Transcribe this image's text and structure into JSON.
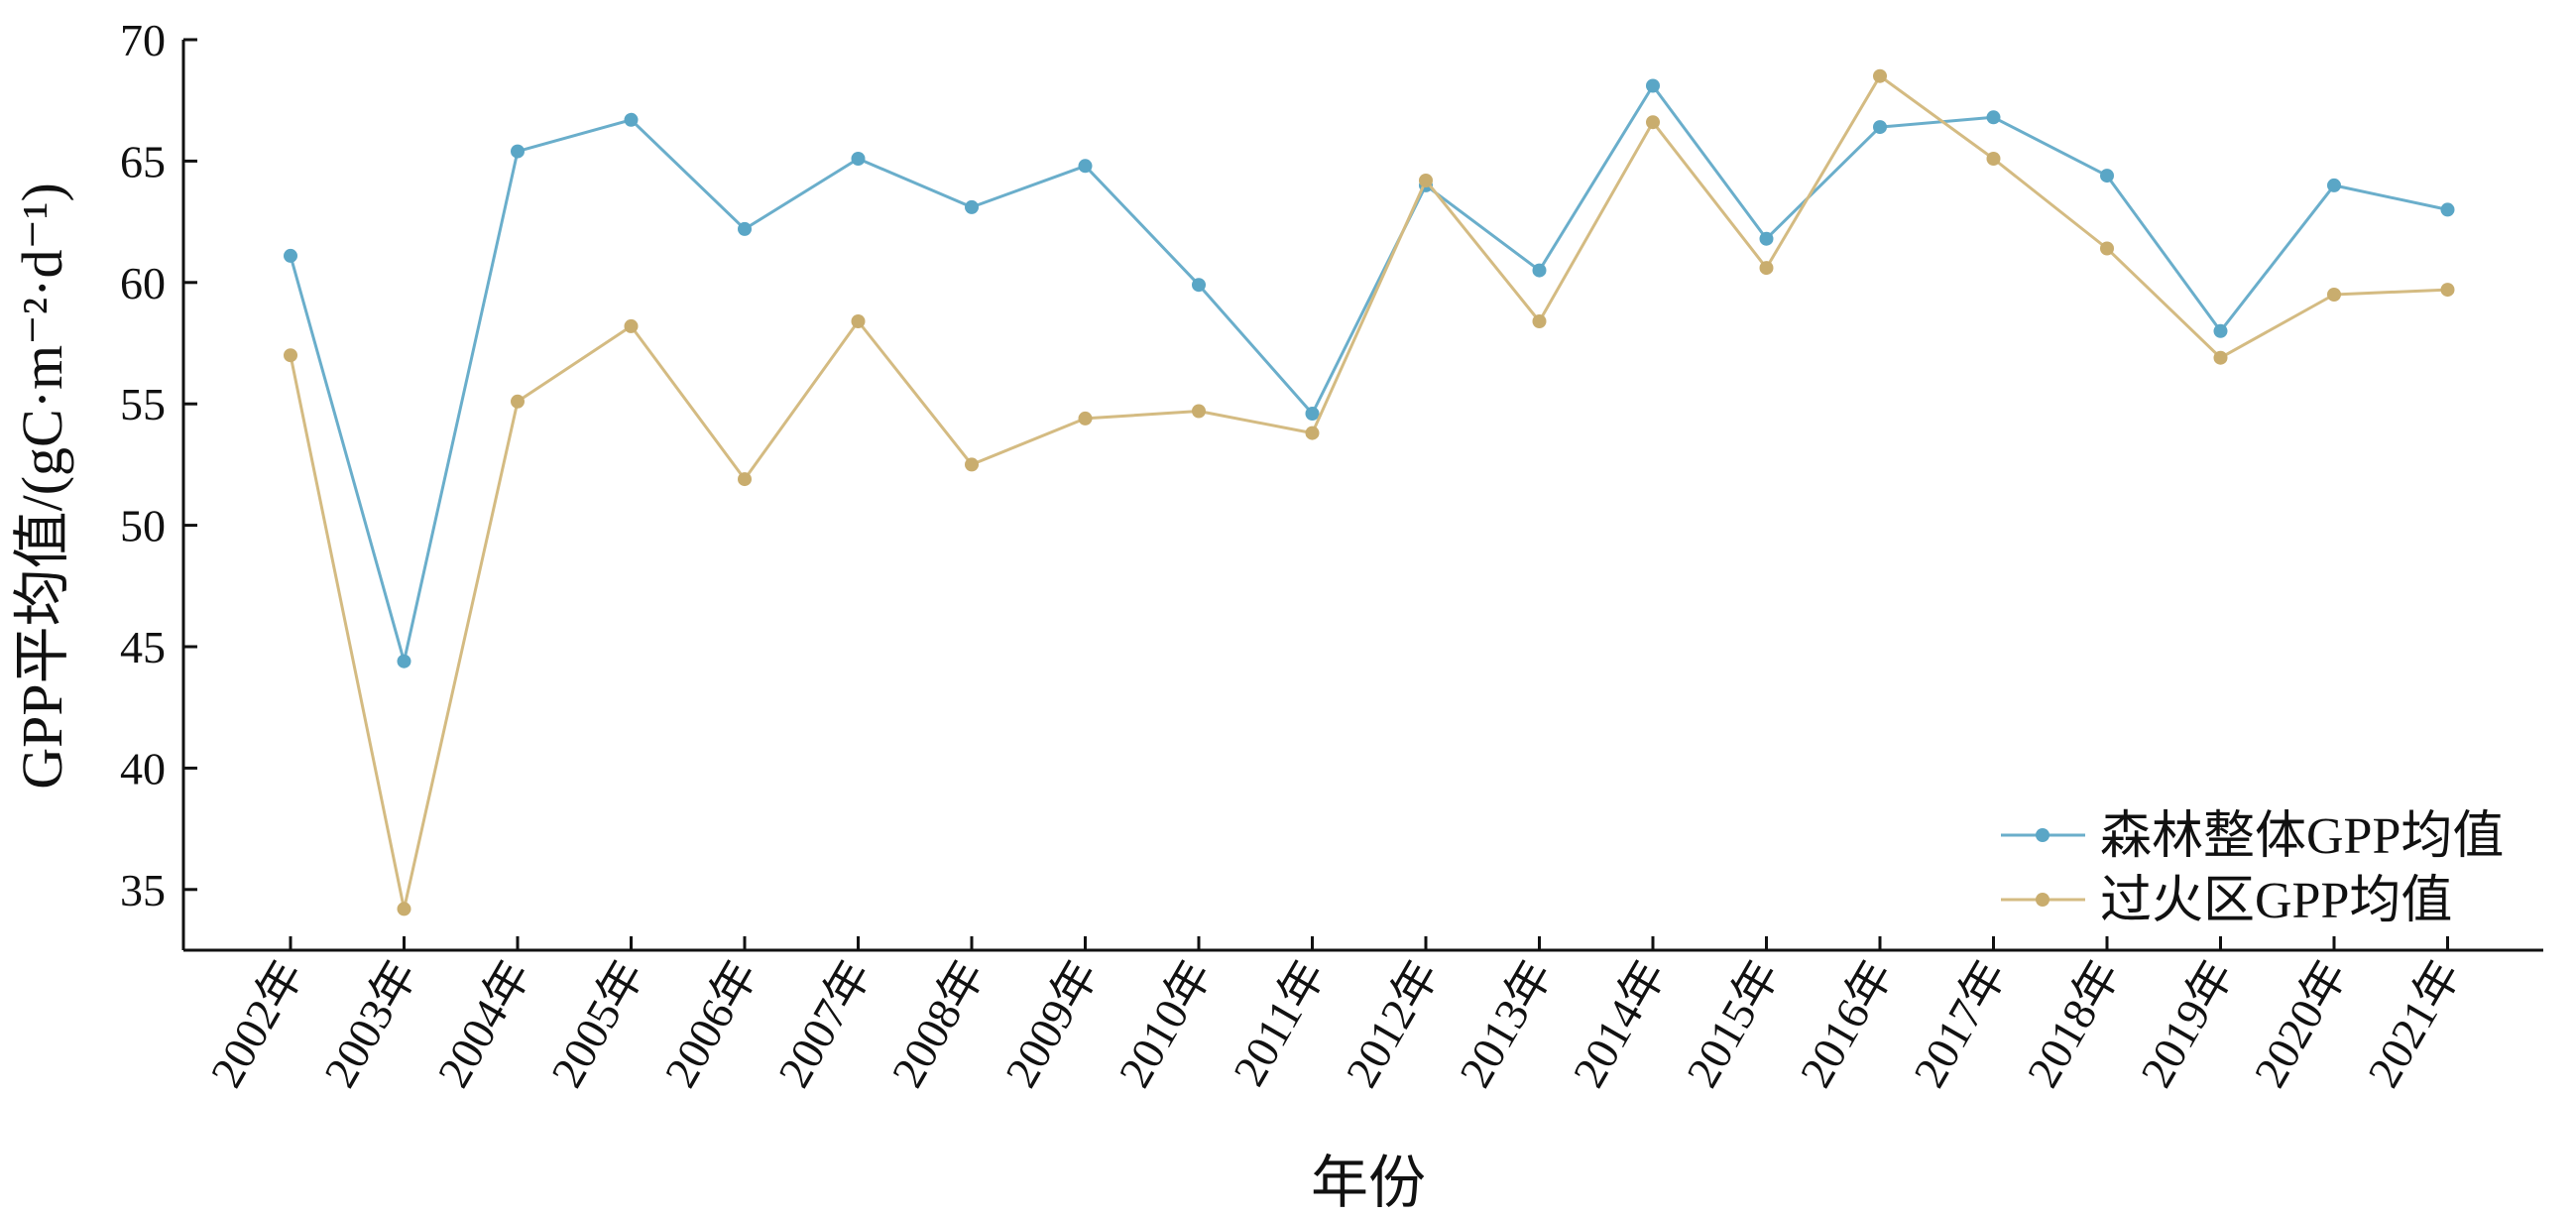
{
  "chart_data": {
    "type": "line",
    "xlabel": "年份",
    "ylabel": "GPP平均值/(gC·m⁻²·d⁻¹)",
    "ylim": [
      32.5,
      70
    ],
    "yticks": [
      35,
      40,
      45,
      50,
      55,
      60,
      65,
      70
    ],
    "grid": false,
    "legend_position": "bottom-right",
    "categories": [
      "2002年",
      "2003年",
      "2004年",
      "2005年",
      "2006年",
      "2007年",
      "2008年",
      "2009年",
      "2010年",
      "2011年",
      "2012年",
      "2013年",
      "2014年",
      "2015年",
      "2016年",
      "2017年",
      "2018年",
      "2019年",
      "2020年",
      "2021年"
    ],
    "series": [
      {
        "name": "森林整体GPP均值",
        "color": "#6aaecb",
        "values": [
          61.1,
          44.4,
          65.4,
          66.7,
          62.2,
          65.1,
          63.1,
          64.8,
          59.9,
          54.6,
          64.0,
          60.5,
          68.1,
          61.8,
          66.4,
          66.8,
          64.4,
          58.0,
          64.0,
          63.0
        ]
      },
      {
        "name": "过火区GPP均值",
        "color": "#d4bb82",
        "values": [
          57.0,
          34.2,
          55.1,
          58.2,
          51.9,
          58.4,
          52.5,
          54.4,
          54.7,
          53.8,
          64.2,
          58.4,
          66.6,
          60.6,
          68.5,
          65.1,
          61.4,
          56.9,
          59.5,
          59.7
        ]
      }
    ]
  }
}
